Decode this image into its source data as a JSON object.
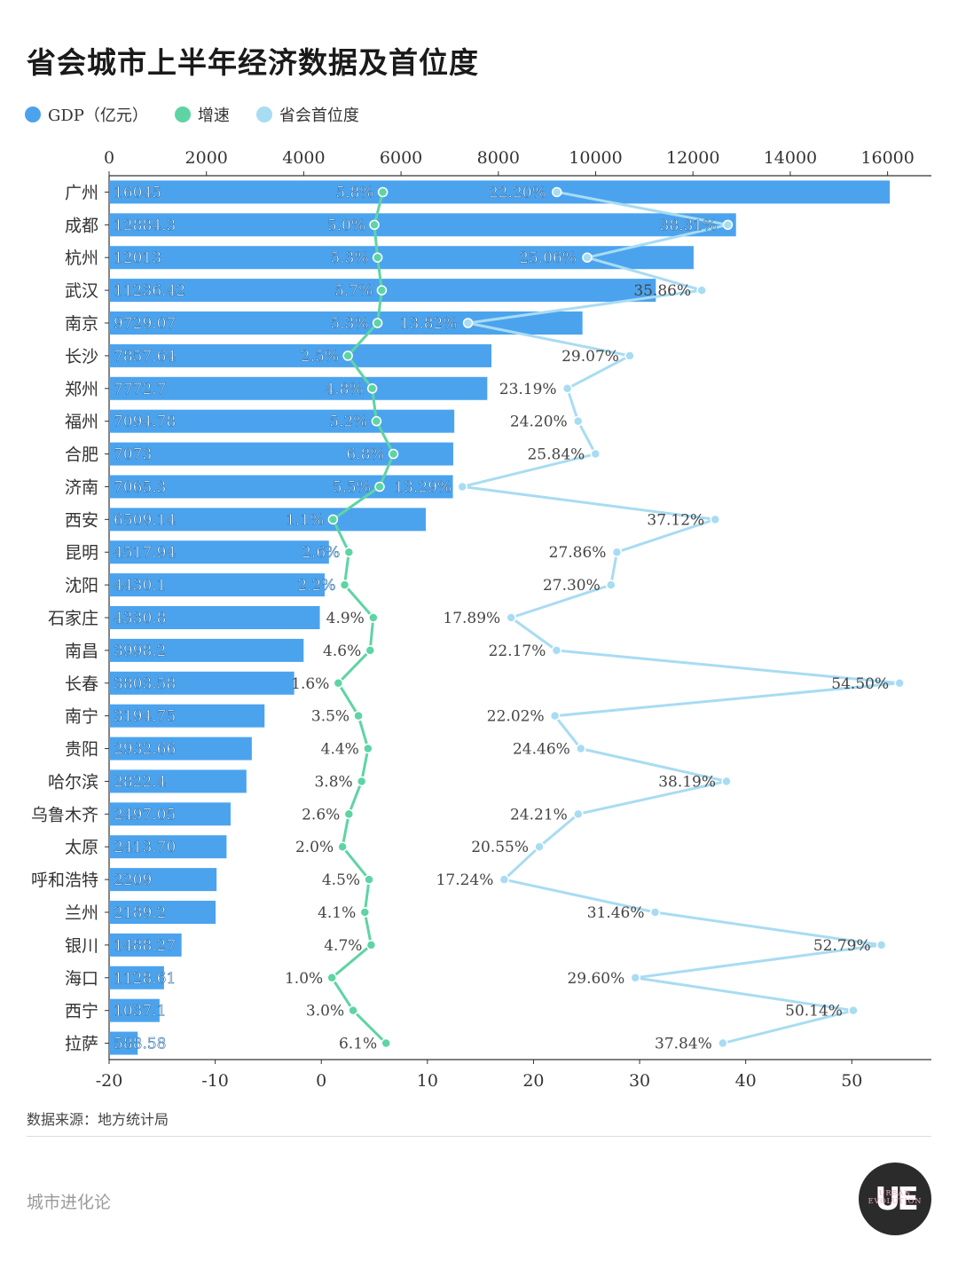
{
  "title": "省会城市上半年经济数据及首位度",
  "legend": [
    {
      "label": "GDP（亿元）",
      "color": "#4ba3ee"
    },
    {
      "label": "增速",
      "color": "#5ed4a4"
    },
    {
      "label": "省会首位度",
      "color": "#a8dcf2"
    }
  ],
  "source": "数据来源：地方统计局",
  "footer": "城市进化论",
  "logo": {
    "text": "UE",
    "sub": "URBAN EVOLUTION"
  },
  "colors": {
    "bar": "#4ba3ee",
    "growth": "#5ed4a4",
    "primacy": "#a8dcf2"
  },
  "chart_data": {
    "type": "bar",
    "top_axis": {
      "label": "GDP（亿元）",
      "ticks": [
        0,
        2000,
        4000,
        6000,
        8000,
        10000,
        12000,
        14000,
        16000
      ],
      "lim": [
        0,
        16900
      ]
    },
    "bottom_axis": {
      "ticks": [
        -20,
        -10,
        0,
        10,
        20,
        30,
        40,
        50
      ],
      "lim": [
        -20,
        57.5
      ]
    },
    "categories": [
      "广州",
      "成都",
      "杭州",
      "武汉",
      "南京",
      "长沙",
      "郑州",
      "福州",
      "合肥",
      "济南",
      "西安",
      "昆明",
      "沈阳",
      "石家庄",
      "南昌",
      "长春",
      "南宁",
      "贵阳",
      "哈尔滨",
      "乌鲁木齐",
      "太原",
      "呼和浩特",
      "兰州",
      "银川",
      "海口",
      "西宁",
      "拉萨"
    ],
    "series": [
      {
        "name": "GDP（亿元）",
        "type": "bar",
        "axis": "top",
        "values": [
          16045,
          12884.3,
          12013,
          11236.42,
          9729.07,
          7857.64,
          7772.7,
          7094.78,
          7073,
          7065.3,
          6509.14,
          4517.94,
          4430.1,
          4330.8,
          3998.2,
          3803.58,
          3194.75,
          2932.66,
          2822.4,
          2497.05,
          2413.7,
          2209,
          2189.2,
          1488.27,
          1128.61,
          1037.1,
          588.58
        ],
        "labels": [
          "16045",
          "12884.3",
          "12013",
          "11236.42",
          "9729.07",
          "7857.64",
          "7772.7",
          "7094.78",
          "7073",
          "7065.3",
          "6509.14",
          "4517.94",
          "4430.1",
          "4330.8",
          "3998.2",
          "3803.58",
          "3194.75",
          "2932.66",
          "2822.4",
          "2497.05",
          "2413.70",
          "2209",
          "2189.2",
          "1488.27",
          "1128.61",
          "1037.1",
          "588.58"
        ]
      },
      {
        "name": "增速",
        "type": "line",
        "axis": "bottom",
        "values": [
          5.8,
          5.0,
          5.3,
          5.7,
          5.3,
          2.5,
          4.8,
          5.2,
          6.8,
          5.5,
          1.1,
          2.6,
          2.2,
          4.9,
          4.6,
          1.6,
          3.5,
          4.4,
          3.8,
          2.6,
          2.0,
          4.5,
          4.1,
          4.7,
          1.0,
          3.0,
          6.1
        ],
        "labels": [
          "5.8%",
          "5.0%",
          "5.3%",
          "5.7%",
          "5.3%",
          "2.5%",
          "4.8%",
          "5.2%",
          "6.8%",
          "5.5%",
          "1.1%",
          "2.6%",
          "2.2%",
          "4.9%",
          "4.6%",
          "1.6%",
          "3.5%",
          "4.4%",
          "3.8%",
          "2.6%",
          "2.0%",
          "4.5%",
          "4.1%",
          "4.7%",
          "1.0%",
          "3.0%",
          "6.1%"
        ]
      },
      {
        "name": "省会首位度",
        "type": "line",
        "axis": "bottom",
        "values": [
          22.2,
          38.31,
          25.06,
          35.86,
          13.82,
          29.07,
          23.19,
          24.2,
          25.84,
          13.29,
          37.12,
          27.86,
          27.3,
          17.89,
          22.17,
          54.5,
          22.02,
          24.46,
          38.19,
          24.21,
          20.55,
          17.24,
          31.46,
          52.79,
          29.6,
          50.14,
          37.84
        ],
        "labels": [
          "22.20%",
          "38.31%",
          "25.06%",
          "35.86%",
          "13.82%",
          "29.07%",
          "23.19%",
          "24.20%",
          "25.84%",
          "13.29%",
          "37.12%",
          "27.86%",
          "27.30%",
          "17.89%",
          "22.17%",
          "54.50%",
          "22.02%",
          "24.46%",
          "38.19%",
          "24.21%",
          "20.55%",
          "17.24%",
          "31.46%",
          "52.79%",
          "29.60%",
          "50.14%",
          "37.84%"
        ]
      }
    ]
  }
}
